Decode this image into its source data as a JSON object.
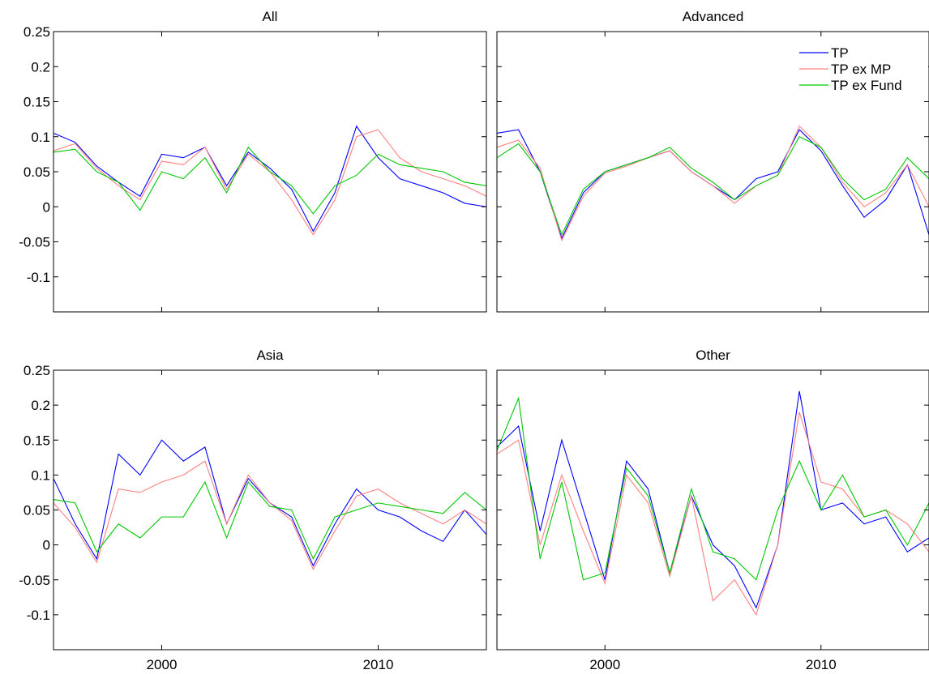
{
  "chart_data": [
    {
      "type": "line",
      "title": "All",
      "xlim": [
        1995,
        2015
      ],
      "ylim": [
        -0.15,
        0.25
      ],
      "x_ticks": [
        2000,
        2010
      ],
      "x_tick_labels": [],
      "y_ticks": [
        -0.1,
        -0.05,
        0,
        0.05,
        0.1,
        0.15,
        0.2,
        0.25
      ],
      "y_tick_labels": [
        "-0.1",
        "-0.05",
        "0",
        "0.05",
        "0.1",
        "0.15",
        "0.2",
        "0.25"
      ],
      "grid": false,
      "x": [
        1995,
        1996,
        1997,
        1998,
        1999,
        2000,
        2001,
        2002,
        2003,
        2004,
        2005,
        2006,
        2007,
        2008,
        2009,
        2010,
        2011,
        2012,
        2013,
        2014,
        2015
      ],
      "series": [
        {
          "name": "TP",
          "color": "#0000ff",
          "values": [
            0.105,
            0.092,
            0.058,
            0.035,
            0.015,
            0.075,
            0.07,
            0.085,
            0.03,
            0.078,
            0.055,
            0.025,
            -0.035,
            0.02,
            0.115,
            0.07,
            0.04,
            0.03,
            0.02,
            0.005,
            0.0
          ]
        },
        {
          "name": "TP ex MP",
          "color": "#ff8080",
          "values": [
            0.08,
            0.09,
            0.055,
            0.03,
            0.01,
            0.065,
            0.06,
            0.085,
            0.025,
            0.075,
            0.05,
            0.01,
            -0.04,
            0.01,
            0.1,
            0.11,
            0.07,
            0.05,
            0.04,
            0.03,
            0.015
          ]
        },
        {
          "name": "TP ex Fund",
          "color": "#00c800",
          "values": [
            0.078,
            0.082,
            0.05,
            0.035,
            -0.005,
            0.05,
            0.04,
            0.07,
            0.02,
            0.085,
            0.05,
            0.03,
            -0.01,
            0.03,
            0.045,
            0.075,
            0.06,
            0.055,
            0.05,
            0.035,
            0.03
          ]
        }
      ]
    },
    {
      "type": "line",
      "title": "Advanced",
      "xlim": [
        1995,
        2015
      ],
      "ylim": [
        -0.15,
        0.25
      ],
      "x_ticks": [
        2000,
        2010
      ],
      "x_tick_labels": [],
      "y_ticks": [
        -0.1,
        -0.05,
        0,
        0.05,
        0.1,
        0.15,
        0.2,
        0.25
      ],
      "y_tick_labels": [],
      "grid": false,
      "legend": {
        "position": "top-right",
        "entries": [
          "TP",
          "TP ex MP",
          "TP ex Fund"
        ]
      },
      "x": [
        1995,
        1996,
        1997,
        1998,
        1999,
        2000,
        2001,
        2002,
        2003,
        2004,
        2005,
        2006,
        2007,
        2008,
        2009,
        2010,
        2011,
        2012,
        2013,
        2014,
        2015
      ],
      "series": [
        {
          "name": "TP",
          "color": "#0000ff",
          "values": [
            0.105,
            0.11,
            0.05,
            -0.045,
            0.02,
            0.05,
            0.06,
            0.07,
            0.08,
            0.05,
            0.03,
            0.01,
            0.04,
            0.05,
            0.11,
            0.08,
            0.03,
            -0.015,
            0.01,
            0.06,
            -0.04
          ]
        },
        {
          "name": "TP ex MP",
          "color": "#ff8080",
          "values": [
            0.085,
            0.095,
            0.055,
            -0.048,
            0.015,
            0.048,
            0.058,
            0.07,
            0.08,
            0.05,
            0.03,
            0.005,
            0.03,
            0.045,
            0.115,
            0.085,
            0.035,
            0.0,
            0.02,
            0.06,
            0.0
          ]
        },
        {
          "name": "TP ex Fund",
          "color": "#00c800",
          "values": [
            0.07,
            0.09,
            0.05,
            -0.04,
            0.025,
            0.05,
            0.06,
            0.07,
            0.085,
            0.055,
            0.035,
            0.01,
            0.03,
            0.045,
            0.1,
            0.085,
            0.04,
            0.01,
            0.025,
            0.07,
            0.04
          ]
        }
      ]
    },
    {
      "type": "line",
      "title": "Asia",
      "xlim": [
        1995,
        2015
      ],
      "ylim": [
        -0.15,
        0.25
      ],
      "x_ticks": [
        2000,
        2010
      ],
      "x_tick_labels": [
        "2000",
        "2010"
      ],
      "y_ticks": [
        -0.1,
        -0.05,
        0,
        0.05,
        0.1,
        0.15,
        0.2,
        0.25
      ],
      "y_tick_labels": [
        "-0.1",
        "-0.05",
        "0",
        "0.05",
        "0.1",
        "0.15",
        "0.2",
        "0.25"
      ],
      "grid": false,
      "x": [
        1995,
        1996,
        1997,
        1998,
        1999,
        2000,
        2001,
        2002,
        2003,
        2004,
        2005,
        2006,
        2007,
        2008,
        2009,
        2010,
        2011,
        2012,
        2013,
        2014,
        2015
      ],
      "series": [
        {
          "name": "TP",
          "color": "#0000ff",
          "values": [
            0.095,
            0.03,
            -0.02,
            0.13,
            0.1,
            0.15,
            0.12,
            0.14,
            0.03,
            0.095,
            0.06,
            0.04,
            -0.03,
            0.03,
            0.08,
            0.05,
            0.04,
            0.02,
            0.005,
            0.05,
            0.015
          ]
        },
        {
          "name": "TP ex MP",
          "color": "#ff8080",
          "values": [
            0.06,
            0.025,
            -0.025,
            0.08,
            0.075,
            0.09,
            0.1,
            0.12,
            0.03,
            0.1,
            0.06,
            0.035,
            -0.035,
            0.02,
            0.07,
            0.08,
            0.06,
            0.045,
            0.03,
            0.05,
            0.03
          ]
        },
        {
          "name": "TP ex Fund",
          "color": "#00c800",
          "values": [
            0.065,
            0.06,
            -0.01,
            0.03,
            0.01,
            0.04,
            0.04,
            0.09,
            0.01,
            0.09,
            0.055,
            0.05,
            -0.02,
            0.04,
            0.05,
            0.06,
            0.055,
            0.05,
            0.045,
            0.075,
            0.05
          ]
        }
      ]
    },
    {
      "type": "line",
      "title": "Other",
      "xlim": [
        1995,
        2015
      ],
      "ylim": [
        -0.15,
        0.25
      ],
      "x_ticks": [
        2000,
        2010
      ],
      "x_tick_labels": [
        "2000",
        "2010"
      ],
      "y_ticks": [
        -0.1,
        -0.05,
        0,
        0.05,
        0.1,
        0.15,
        0.2,
        0.25
      ],
      "y_tick_labels": [],
      "grid": false,
      "x": [
        1995,
        1996,
        1997,
        1998,
        1999,
        2000,
        2001,
        2002,
        2003,
        2004,
        2005,
        2006,
        2007,
        2008,
        2009,
        2010,
        2011,
        2012,
        2013,
        2014,
        2015
      ],
      "series": [
        {
          "name": "TP",
          "color": "#0000ff",
          "values": [
            0.14,
            0.17,
            0.02,
            0.15,
            0.05,
            -0.05,
            0.12,
            0.08,
            -0.04,
            0.07,
            0.0,
            -0.03,
            -0.09,
            0.0,
            0.22,
            0.05,
            0.06,
            0.03,
            0.04,
            -0.01,
            0.01
          ]
        },
        {
          "name": "TP ex MP",
          "color": "#ff8080",
          "values": [
            0.13,
            0.15,
            0.0,
            0.1,
            0.02,
            -0.055,
            0.1,
            0.06,
            -0.045,
            0.07,
            -0.08,
            -0.05,
            -0.1,
            0.0,
            0.19,
            0.09,
            0.08,
            0.04,
            0.05,
            0.03,
            -0.01
          ]
        },
        {
          "name": "TP ex Fund",
          "color": "#00c800",
          "values": [
            0.135,
            0.21,
            -0.02,
            0.09,
            -0.05,
            -0.04,
            0.11,
            0.07,
            -0.04,
            0.08,
            -0.01,
            -0.02,
            -0.05,
            0.05,
            0.12,
            0.05,
            0.1,
            0.04,
            0.05,
            0.0,
            0.06
          ]
        }
      ]
    }
  ]
}
